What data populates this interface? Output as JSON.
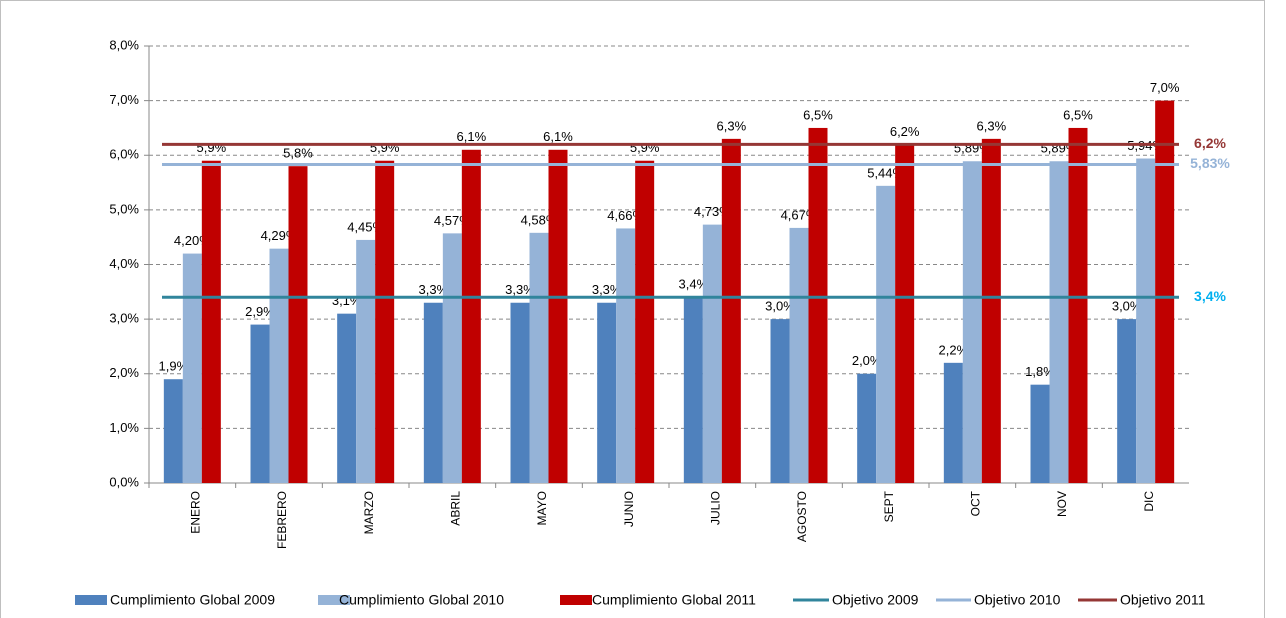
{
  "chart_data": {
    "type": "bar",
    "categories": [
      "ENERO",
      "FEBRERO",
      "MARZO",
      "ABRIL",
      "MAYO",
      "JUNIO",
      "JULIO",
      "AGOSTO",
      "SEPT",
      "OCT",
      "NOV",
      "DIC"
    ],
    "series": [
      {
        "name": "Cumplimiento Global 2009",
        "color": "#4f81bd",
        "values": [
          1.9,
          2.9,
          3.1,
          3.3,
          3.3,
          3.3,
          3.4,
          3.0,
          2.0,
          2.2,
          1.8,
          3.0
        ],
        "value_labels": [
          "1,9%",
          "2,9%",
          "3,1%",
          "3,3%",
          "3,3%",
          "3,3%",
          "3,4%",
          "3,0%",
          "2,0%",
          "2,2%",
          "1,8%",
          "3,0%"
        ]
      },
      {
        "name": "Cumplimiento Global 2010",
        "color": "#95b3d7",
        "values": [
          4.2,
          4.29,
          4.45,
          4.57,
          4.58,
          4.66,
          4.73,
          4.67,
          5.44,
          5.89,
          5.89,
          5.94
        ],
        "value_labels": [
          "4,20%",
          "4,29%",
          "4,45%",
          "4,57%",
          "4,58%",
          "4,66%",
          "4,73%",
          "4,67%",
          "5,44%",
          "5,89%",
          "5,89%",
          "5,94%"
        ]
      },
      {
        "name": "Cumplimiento Global 2011",
        "color": "#c00000",
        "values": [
          5.9,
          5.8,
          5.9,
          6.1,
          6.1,
          5.9,
          6.3,
          6.5,
          6.2,
          6.3,
          6.5,
          7.0
        ],
        "value_labels": [
          "5,9%",
          "5,8%",
          "5,9%",
          "6,1%",
          "6,1%",
          "5,9%",
          "6,3%",
          "6,5%",
          "6,2%",
          "6,3%",
          "6,5%",
          "7,0%"
        ]
      }
    ],
    "reference_lines": [
      {
        "name": "Objetivo 2009",
        "color": "#31859c",
        "label_color": "#00b0f0",
        "value": 3.4,
        "label": "3,4%"
      },
      {
        "name": "Objetivo 2010",
        "color": "#95b3d7",
        "label_color": "#95b3d7",
        "value": 5.83,
        "label": "5,83%"
      },
      {
        "name": "Objetivo 2011",
        "color": "#953735",
        "label_color": "#953735",
        "value": 6.2,
        "label": "6,2%"
      }
    ],
    "ylim": [
      0,
      8
    ],
    "yticks": [
      {
        "value": 0,
        "label": "0,0%"
      },
      {
        "value": 1,
        "label": "1,0%"
      },
      {
        "value": 2,
        "label": "2,0%"
      },
      {
        "value": 3,
        "label": "3,0%"
      },
      {
        "value": 4,
        "label": "4,0%"
      },
      {
        "value": 5,
        "label": "5,0%"
      },
      {
        "value": 6,
        "label": "6,0%"
      },
      {
        "value": 7,
        "label": "7,0%"
      },
      {
        "value": 8,
        "label": "8,0%"
      }
    ],
    "grid": true,
    "legend": "bottom"
  }
}
